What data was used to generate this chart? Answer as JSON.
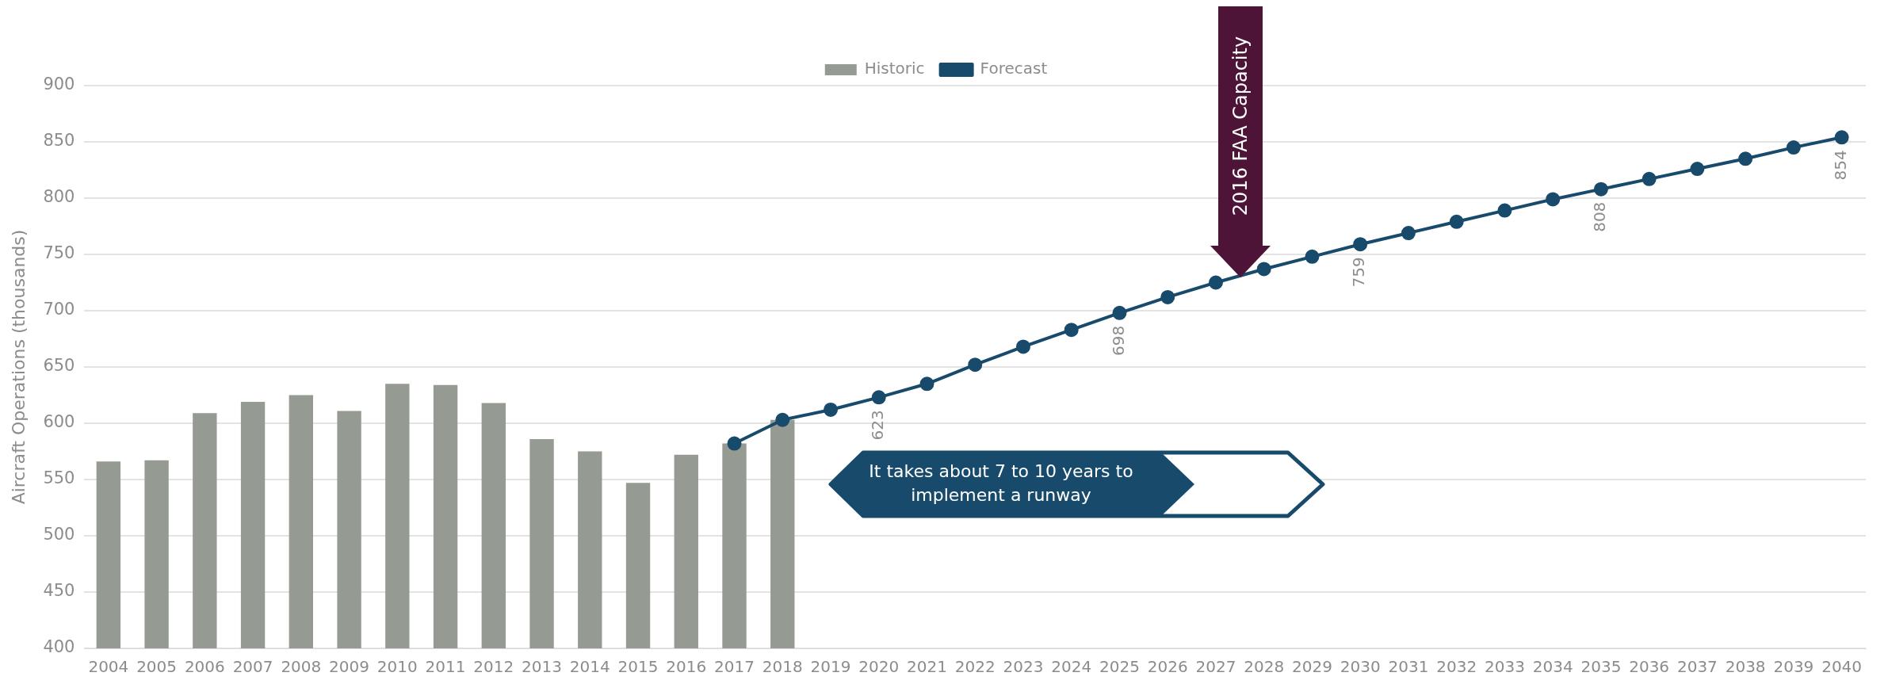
{
  "chart_data": {
    "type": "bar",
    "ylabel": "Aircraft Operations (thousands)",
    "categories": [
      "2004",
      "2005",
      "2006",
      "2007",
      "2008",
      "2009",
      "2010",
      "2011",
      "2012",
      "2013",
      "2014",
      "2015",
      "2016",
      "2017",
      "2018",
      "2019",
      "2020",
      "2021",
      "2022",
      "2023",
      "2024",
      "2025",
      "2026",
      "2027",
      "2028",
      "2029",
      "2030",
      "2031",
      "2032",
      "2033",
      "2034",
      "2035",
      "2036",
      "2037",
      "2038",
      "2039",
      "2040"
    ],
    "series": [
      {
        "name": "Historic",
        "color": "#959a92",
        "values": [
          566,
          567,
          609,
          619,
          625,
          611,
          635,
          634,
          618,
          586,
          575,
          547,
          572,
          582,
          603,
          null,
          null,
          null,
          null,
          null,
          null,
          null,
          null,
          null,
          null,
          null,
          null,
          null,
          null,
          null,
          null,
          null,
          null,
          null,
          null,
          null,
          null
        ]
      },
      {
        "name": "Forecast",
        "type": "line",
        "color": "#174a6b",
        "marker": "circle",
        "line_style": "solid",
        "values": [
          null,
          null,
          null,
          null,
          null,
          null,
          null,
          null,
          null,
          null,
          null,
          null,
          null,
          582,
          603,
          612,
          623,
          635,
          652,
          668,
          683,
          698,
          712,
          725,
          737,
          748,
          759,
          769,
          779,
          789,
          799,
          808,
          817,
          826,
          835,
          845,
          854
        ],
        "value_labels": [
          null,
          null,
          null,
          null,
          null,
          null,
          null,
          null,
          null,
          null,
          null,
          null,
          null,
          null,
          null,
          null,
          "623",
          null,
          null,
          null,
          null,
          "698",
          null,
          null,
          null,
          null,
          "759",
          null,
          null,
          null,
          null,
          "808",
          null,
          null,
          null,
          null,
          "854"
        ]
      }
    ],
    "ylim": [
      400,
      900
    ],
    "yticks": [
      400,
      450,
      500,
      550,
      600,
      650,
      700,
      750,
      800,
      850,
      900
    ],
    "grid": "y",
    "legend": "top",
    "annotations": [
      "2016 FAA Capacity",
      "It takes about 7 to 10 years to implement a runway"
    ]
  }
}
